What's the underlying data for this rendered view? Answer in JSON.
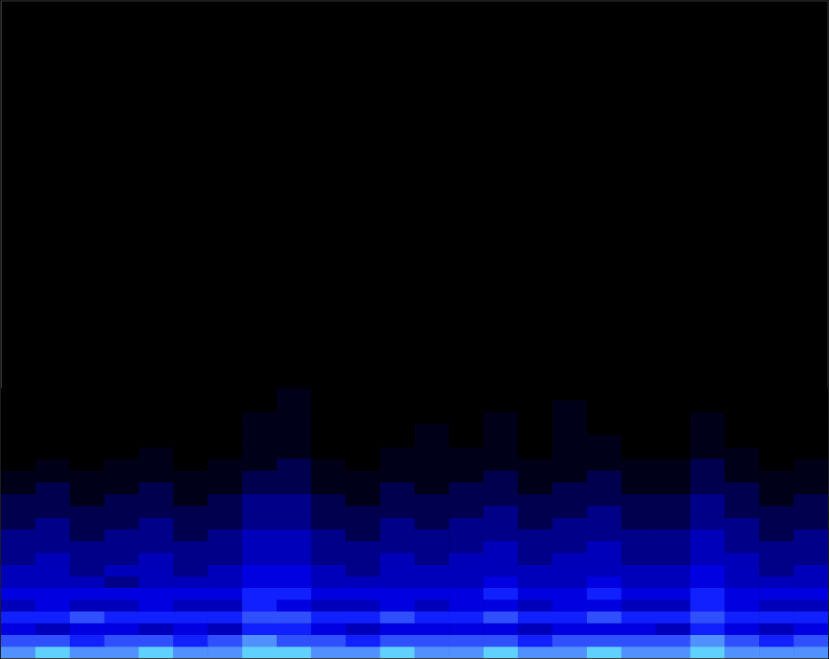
{
  "chart_data": {
    "type": "heatmap",
    "xlim": [
      0,
      24
    ],
    "ylim": [
      0,
      56
    ],
    "value_range": [
      0,
      10
    ],
    "tick_labels": false,
    "grid": false,
    "cells": [
      [
        8,
        9,
        8,
        8,
        9,
        8,
        8,
        9,
        9,
        8,
        8,
        9,
        8,
        8,
        9,
        8,
        8,
        9,
        8,
        8,
        9,
        8,
        8,
        8
      ],
      [
        7,
        7,
        6,
        7,
        7,
        6,
        7,
        8,
        7,
        7,
        6,
        7,
        7,
        7,
        7,
        6,
        7,
        7,
        7,
        7,
        8,
        7,
        6,
        7
      ],
      [
        5,
        4,
        5,
        5,
        4,
        5,
        4,
        6,
        6,
        5,
        4,
        5,
        5,
        5,
        5,
        4,
        5,
        5,
        5,
        4,
        6,
        5,
        4,
        5
      ],
      [
        6,
        6,
        7,
        6,
        6,
        6,
        6,
        7,
        7,
        6,
        6,
        7,
        6,
        6,
        7,
        6,
        6,
        7,
        6,
        6,
        7,
        6,
        6,
        6
      ],
      [
        4,
        5,
        4,
        4,
        5,
        4,
        4,
        6,
        5,
        4,
        4,
        5,
        4,
        5,
        5,
        4,
        5,
        5,
        4,
        4,
        6,
        5,
        4,
        4
      ],
      [
        5,
        5,
        5,
        5,
        5,
        5,
        5,
        6,
        6,
        5,
        5,
        5,
        5,
        5,
        6,
        5,
        5,
        6,
        5,
        5,
        6,
        5,
        5,
        5
      ],
      [
        4,
        4,
        4,
        3,
        4,
        4,
        4,
        5,
        5,
        4,
        4,
        4,
        4,
        4,
        5,
        4,
        4,
        5,
        4,
        4,
        5,
        4,
        4,
        4
      ],
      [
        4,
        4,
        3,
        4,
        4,
        3,
        4,
        5,
        5,
        4,
        3,
        4,
        4,
        4,
        4,
        4,
        4,
        4,
        4,
        4,
        5,
        4,
        3,
        4
      ],
      [
        3,
        4,
        3,
        3,
        4,
        3,
        3,
        4,
        4,
        3,
        3,
        4,
        3,
        4,
        4,
        3,
        4,
        4,
        3,
        3,
        4,
        4,
        3,
        3
      ],
      [
        3,
        3,
        3,
        3,
        3,
        3,
        3,
        4,
        4,
        3,
        3,
        3,
        3,
        3,
        4,
        3,
        3,
        4,
        3,
        3,
        4,
        3,
        3,
        3
      ],
      [
        3,
        3,
        2,
        3,
        3,
        2,
        3,
        4,
        4,
        3,
        2,
        3,
        3,
        3,
        3,
        3,
        3,
        3,
        3,
        3,
        4,
        3,
        2,
        3
      ],
      [
        2,
        3,
        2,
        2,
        3,
        2,
        2,
        3,
        3,
        2,
        2,
        3,
        2,
        3,
        3,
        2,
        3,
        3,
        2,
        2,
        3,
        3,
        2,
        2
      ],
      [
        2,
        2,
        2,
        2,
        2,
        2,
        2,
        3,
        3,
        2,
        2,
        2,
        2,
        2,
        3,
        2,
        2,
        3,
        2,
        2,
        3,
        2,
        2,
        2
      ],
      [
        2,
        2,
        1,
        2,
        2,
        1,
        2,
        3,
        3,
        2,
        1,
        2,
        2,
        2,
        2,
        2,
        2,
        2,
        2,
        2,
        3,
        2,
        1,
        2
      ],
      [
        1,
        2,
        1,
        1,
        2,
        1,
        1,
        2,
        2,
        1,
        1,
        2,
        1,
        2,
        2,
        1,
        2,
        2,
        1,
        1,
        2,
        2,
        1,
        1
      ],
      [
        1,
        1,
        1,
        1,
        1,
        1,
        1,
        2,
        2,
        1,
        1,
        1,
        1,
        1,
        2,
        1,
        1,
        2,
        1,
        1,
        2,
        1,
        1,
        1
      ],
      [
        0,
        1,
        0,
        1,
        1,
        0,
        1,
        1,
        2,
        1,
        0,
        1,
        1,
        1,
        1,
        1,
        1,
        1,
        1,
        1,
        2,
        1,
        0,
        1
      ],
      [
        0,
        0,
        0,
        0,
        1,
        0,
        0,
        1,
        1,
        0,
        0,
        1,
        1,
        1,
        1,
        0,
        1,
        1,
        0,
        0,
        1,
        1,
        0,
        0
      ],
      [
        0,
        0,
        0,
        0,
        0,
        0,
        0,
        1,
        1,
        0,
        0,
        0,
        1,
        0,
        1,
        0,
        1,
        1,
        0,
        0,
        1,
        0,
        0,
        0
      ],
      [
        0,
        0,
        0,
        0,
        0,
        0,
        0,
        1,
        1,
        0,
        0,
        0,
        1,
        0,
        1,
        0,
        1,
        0,
        0,
        0,
        1,
        0,
        0,
        0
      ],
      [
        0,
        0,
        0,
        0,
        0,
        0,
        0,
        1,
        1,
        0,
        0,
        0,
        0,
        0,
        1,
        0,
        1,
        0,
        0,
        0,
        1,
        0,
        0,
        0
      ],
      [
        0,
        0,
        0,
        0,
        0,
        0,
        0,
        0,
        1,
        0,
        0,
        0,
        0,
        0,
        0,
        0,
        1,
        0,
        0,
        0,
        0,
        0,
        0,
        0
      ],
      [
        0,
        0,
        0,
        0,
        0,
        0,
        0,
        0,
        1,
        0,
        0,
        0,
        0,
        0,
        0,
        0,
        0,
        0,
        0,
        0,
        0,
        0,
        0,
        0
      ]
    ]
  }
}
